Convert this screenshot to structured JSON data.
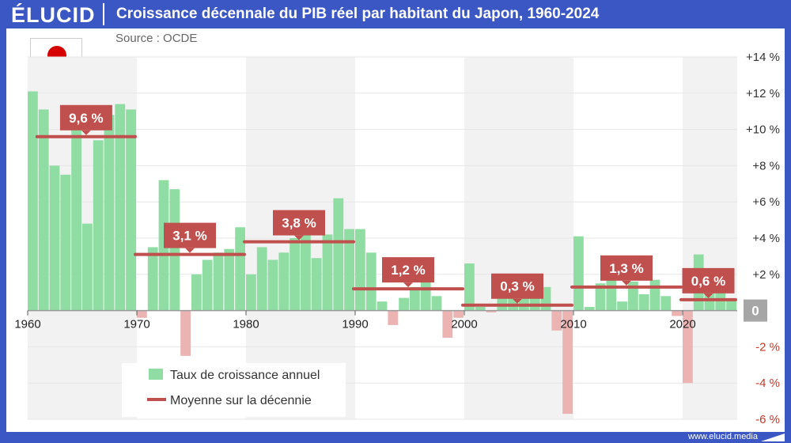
{
  "header": {
    "logo": "ÉLUCID",
    "title": "Croissance décennale du PIB réel par habitant du Japon, 1960-2024",
    "source": "Source : OCDE"
  },
  "footer": {
    "site": "www.elucid.media"
  },
  "colors": {
    "frame": "#3b57c4",
    "bar_positive": "#8fdda3",
    "bar_negative": "#ebb4b2",
    "average": "#c0504d",
    "band": "#f2f2f2",
    "zero_box": "#a6a6a6"
  },
  "chart_data": {
    "type": "bar",
    "xlim": [
      1960,
      2025
    ],
    "ylim": [
      -6,
      14
    ],
    "yticks": [
      14,
      12,
      10,
      8,
      6,
      4,
      2,
      0,
      -2,
      -4,
      -6
    ],
    "ytick_labels": [
      "+14 %",
      "+12 %",
      "+10 %",
      "+8 %",
      "+6 %",
      "+4 %",
      "+2 %",
      "0",
      "-2 %",
      "-4 %",
      "-6 %"
    ],
    "xticks": [
      1960,
      1970,
      1980,
      1990,
      2000,
      2010,
      2020
    ],
    "xtick_labels": [
      "1960",
      "1970",
      "1980",
      "1990",
      "2000",
      "2010",
      "2020"
    ],
    "series": [
      {
        "name": "Taux de croissance annuel",
        "x": [
          1960,
          1961,
          1962,
          1963,
          1964,
          1965,
          1966,
          1967,
          1968,
          1969,
          1970,
          1971,
          1972,
          1973,
          1974,
          1975,
          1976,
          1977,
          1978,
          1979,
          1980,
          1981,
          1982,
          1983,
          1984,
          1985,
          1986,
          1987,
          1988,
          1989,
          1990,
          1991,
          1992,
          1993,
          1994,
          1995,
          1996,
          1997,
          1998,
          1999,
          2000,
          2001,
          2002,
          2003,
          2004,
          2005,
          2006,
          2007,
          2008,
          2009,
          2010,
          2011,
          2012,
          2013,
          2014,
          2015,
          2016,
          2017,
          2018,
          2019,
          2020,
          2021,
          2022,
          2023,
          2024
        ],
        "values": [
          12.1,
          11.1,
          8.0,
          7.5,
          10.5,
          4.8,
          9.4,
          10.8,
          11.4,
          11.1,
          -0.4,
          3.5,
          7.2,
          6.7,
          -2.5,
          2.0,
          2.8,
          3.2,
          3.4,
          4.6,
          2.0,
          3.5,
          2.8,
          3.2,
          4.0,
          5.5,
          2.9,
          4.2,
          6.2,
          4.5,
          4.5,
          3.2,
          0.5,
          -0.8,
          0.7,
          1.3,
          2.4,
          0.8,
          -1.5,
          -0.4,
          2.6,
          0.2,
          -0.1,
          1.3,
          2.0,
          1.8,
          1.3,
          1.3,
          -1.1,
          -5.7,
          4.1,
          0.2,
          1.5,
          2.2,
          0.5,
          1.6,
          0.9,
          1.7,
          0.8,
          -0.3,
          -4.0,
          3.1,
          1.3,
          1.1,
          0.6
        ]
      },
      {
        "name": "Moyenne sur la décennie",
        "decades": [
          {
            "start": 1961,
            "end": 1970,
            "value": 9.6,
            "label": "9,6 %"
          },
          {
            "start": 1970,
            "end": 1980,
            "value": 3.1,
            "label": "3,1 %"
          },
          {
            "start": 1980,
            "end": 1990,
            "value": 3.8,
            "label": "3,8 %"
          },
          {
            "start": 1990,
            "end": 2000,
            "value": 1.2,
            "label": "1,2 %"
          },
          {
            "start": 2000,
            "end": 2010,
            "value": 0.3,
            "label": "0,3 %"
          },
          {
            "start": 2010,
            "end": 2020,
            "value": 1.3,
            "label": "1,3 %"
          },
          {
            "start": 2020,
            "end": 2025,
            "value": 0.6,
            "label": "0,6 %"
          }
        ]
      }
    ],
    "legend": [
      "Taux de croissance annuel",
      "Moyenne sur la décennie"
    ],
    "legend_position": "bottom-left",
    "grid": true,
    "alternating_decade_bands": true
  }
}
